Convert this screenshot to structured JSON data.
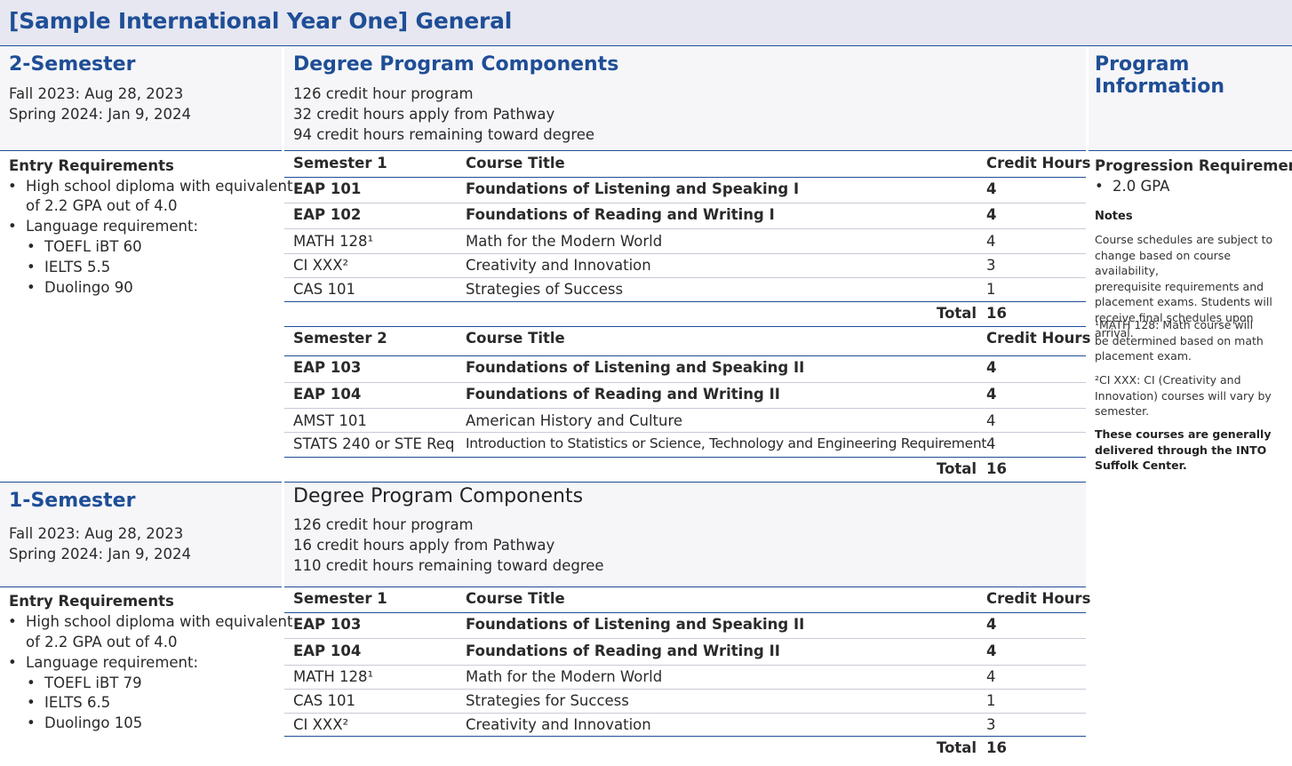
{
  "page_title": "[Sample International Year One] General",
  "left": {
    "two_sem": {
      "heading": "2-Semester",
      "dates": [
        "Fall 2023: Aug 28, 2023",
        "Spring 2024: Jan 9, 2024"
      ],
      "entry_heading": "Entry Requirements",
      "diploma_line1": "High school diploma with equivalent",
      "diploma_line2": "of 2.2 GPA out of 4.0",
      "language": "Language requirement:",
      "scores": [
        "TOEFL iBT 60",
        "IELTS 5.5",
        "Duolingo 90"
      ]
    },
    "one_sem": {
      "heading": "1-Semester",
      "dates": [
        "Fall 2023: Aug 28, 2023",
        "Spring 2024: Jan 9, 2024"
      ],
      "entry_heading": "Entry Requirements",
      "diploma_line1": "High school diploma with equivalent",
      "diploma_line2": "of 2.2 GPA out of 4.0",
      "language": "Language requirement:",
      "scores": [
        "TOEFL iBT 79",
        "IELTS 6.5",
        "Duolingo 105"
      ]
    }
  },
  "middle": {
    "two_sem": {
      "heading": "Degree Program Components",
      "lines": [
        "126 credit hour program",
        "32 credit hours apply from Pathway",
        "94 credit hours remaining toward degree"
      ],
      "col_title": "Course Title",
      "col_hours": "Credit Hours",
      "total_label": "Total",
      "sem1": {
        "label": "Semester 1",
        "rows": [
          {
            "code": "EAP 101",
            "title": "Foundations of Listening and Speaking I",
            "hours": "4"
          },
          {
            "code": "EAP 102",
            "title": "Foundations of Reading and Writing I",
            "hours": "4"
          },
          {
            "code": "MATH 128¹",
            "title": "Math for the Modern World",
            "hours": "4"
          },
          {
            "code": "CI XXX²",
            "title": "Creativity and Innovation",
            "hours": "3"
          },
          {
            "code": "CAS 101",
            "title": "Strategies of Success",
            "hours": "1"
          }
        ],
        "total": "16"
      },
      "sem2": {
        "label": "Semester 2",
        "rows": [
          {
            "code": "EAP 103",
            "title": "Foundations of Listening and Speaking II",
            "hours": "4"
          },
          {
            "code": "EAP 104",
            "title": "Foundations of Reading and Writing II",
            "hours": "4"
          },
          {
            "code": "AMST 101",
            "title": "American History and Culture",
            "hours": "4"
          },
          {
            "code": "STATS 240 or STE Req",
            "title": "Introduction to Statistics or Science, Technology and Engineering Requirement",
            "hours": "4"
          }
        ],
        "total": "16"
      }
    },
    "one_sem": {
      "heading": "Degree Program Components",
      "lines": [
        "126 credit hour program",
        "16 credit hours apply from Pathway",
        "110 credit hours remaining toward degree"
      ],
      "col_title": "Course Title",
      "col_hours": "Credit Hours",
      "total_label": "Total",
      "sem1": {
        "label": "Semester 1",
        "rows": [
          {
            "code": "EAP 103",
            "title": "Foundations of Listening and Speaking II",
            "hours": "4"
          },
          {
            "code": "EAP 104",
            "title": "Foundations of Reading and Writing II",
            "hours": "4"
          },
          {
            "code": "MATH 128¹",
            "title": "Math for the Modern World",
            "hours": "4"
          },
          {
            "code": "CAS 101",
            "title": "Strategies for Success",
            "hours": "1"
          },
          {
            "code": "CI XXX²",
            "title": "Creativity and Innovation",
            "hours": "3"
          }
        ],
        "total": "16"
      }
    }
  },
  "right": {
    "heading": "Program Information",
    "prog_heading": "Progression Requirements",
    "prog_item": "2.0 GPA",
    "notes_heading": "Notes",
    "note1": [
      "Course schedules are subject to",
      "change based on course availability,",
      "prerequisite requirements and",
      "placement exams. Students will",
      "receive final schedules upon arrival."
    ],
    "note2": [
      "¹MATH 128: Math course will",
      "be determined based on math",
      "placement exam."
    ],
    "note3": [
      "²CI XXX: CI (Creativity and",
      "Innovation) courses will vary by",
      "semester."
    ],
    "note4": [
      "These courses are generally",
      "delivered through the INTO",
      "Suffolk Center."
    ]
  }
}
